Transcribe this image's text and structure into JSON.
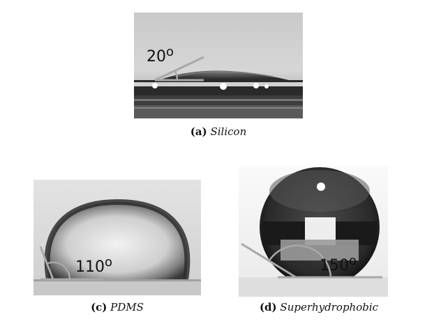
{
  "panels": [
    {
      "id": "a",
      "tag": "(a)",
      "name": "Silicon",
      "angle_value": "20",
      "angle_unit": "o"
    },
    {
      "id": "c",
      "tag": "(c)",
      "name": "PDMS",
      "angle_value": "110",
      "angle_unit": "o"
    },
    {
      "id": "d",
      "tag": "(d)",
      "name": "Superhydrophobic",
      "angle_value": "150",
      "angle_unit": "o"
    }
  ]
}
